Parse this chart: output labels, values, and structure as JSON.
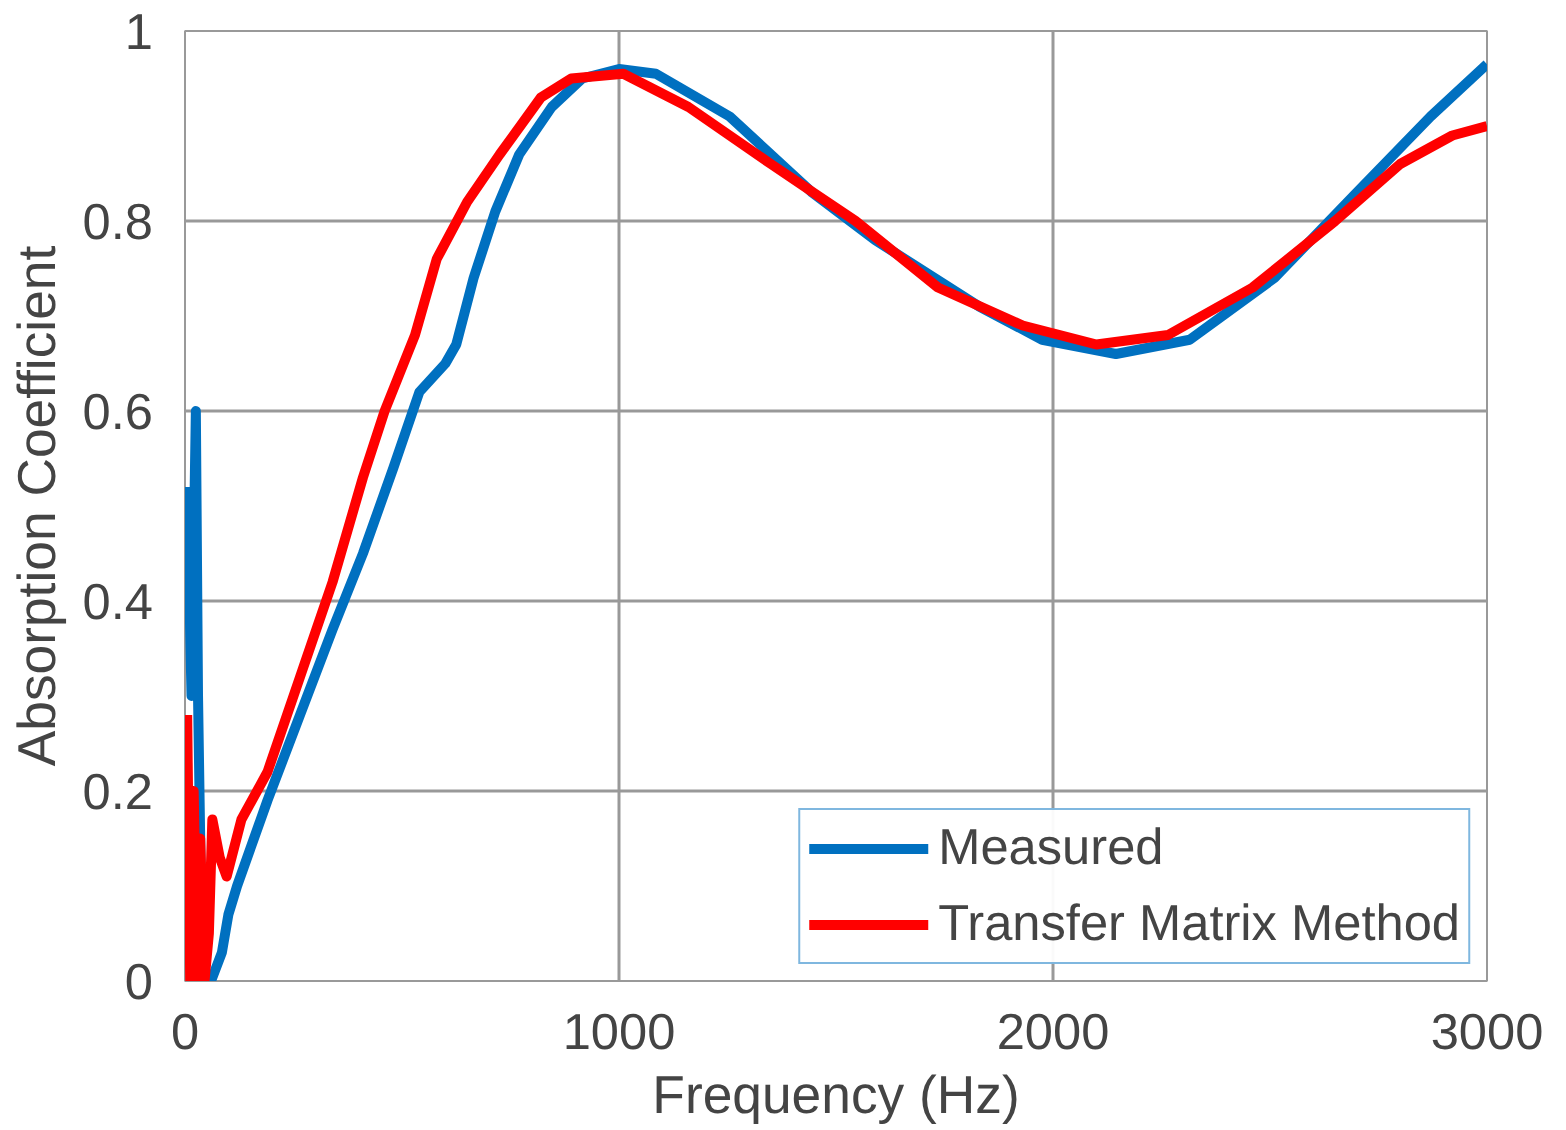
{
  "chart_data": {
    "type": "line",
    "xlabel": "Frequency (Hz)",
    "ylabel": "Absorption Coefficient",
    "xlim": [
      0,
      3000
    ],
    "ylim": [
      0,
      1
    ],
    "xticks": [
      0,
      1000,
      2000,
      3000
    ],
    "yticks": [
      0,
      0.2,
      0.4,
      0.6,
      0.8,
      1
    ],
    "grid": true,
    "legend": "bottom right",
    "marker": "none",
    "line_style": "solid",
    "series": [
      {
        "name": "Measured",
        "color": "#0070c0",
        "x": [
          5,
          15,
          25,
          30,
          40,
          60,
          85,
          100,
          120,
          190,
          265,
          340,
          410,
          480,
          540,
          600,
          625,
          665,
          715,
          770,
          845,
          915,
          1000,
          1085,
          1255,
          1445,
          1590,
          1830,
          1975,
          2145,
          2315,
          2510,
          2700,
          2870,
          3000
        ],
        "values": [
          0.52,
          0.3,
          0.6,
          0.3,
          0.0,
          0.0,
          0.03,
          0.07,
          0.1,
          0.19,
          0.28,
          0.37,
          0.45,
          0.54,
          0.62,
          0.65,
          0.67,
          0.74,
          0.81,
          0.87,
          0.92,
          0.95,
          0.96,
          0.955,
          0.91,
          0.83,
          0.78,
          0.71,
          0.675,
          0.66,
          0.675,
          0.74,
          0.83,
          0.91,
          0.965
        ]
      },
      {
        "name": "Transfer Matrix Method",
        "color": "#ff0000",
        "x": [
          5,
          12,
          20,
          28,
          35,
          45,
          55,
          63,
          80,
          96,
          130,
          190,
          265,
          340,
          410,
          460,
          530,
          580,
          650,
          725,
          820,
          890,
          1010,
          1160,
          1350,
          1545,
          1735,
          1930,
          2100,
          2265,
          2460,
          2650,
          2800,
          2920,
          3000
        ],
        "values": [
          0.28,
          0.0,
          0.2,
          0.0,
          0.15,
          0.0,
          0.05,
          0.17,
          0.13,
          0.11,
          0.17,
          0.22,
          0.32,
          0.42,
          0.53,
          0.6,
          0.68,
          0.76,
          0.82,
          0.87,
          0.93,
          0.95,
          0.955,
          0.92,
          0.86,
          0.8,
          0.73,
          0.69,
          0.67,
          0.68,
          0.73,
          0.8,
          0.86,
          0.89,
          0.9
        ]
      }
    ]
  }
}
